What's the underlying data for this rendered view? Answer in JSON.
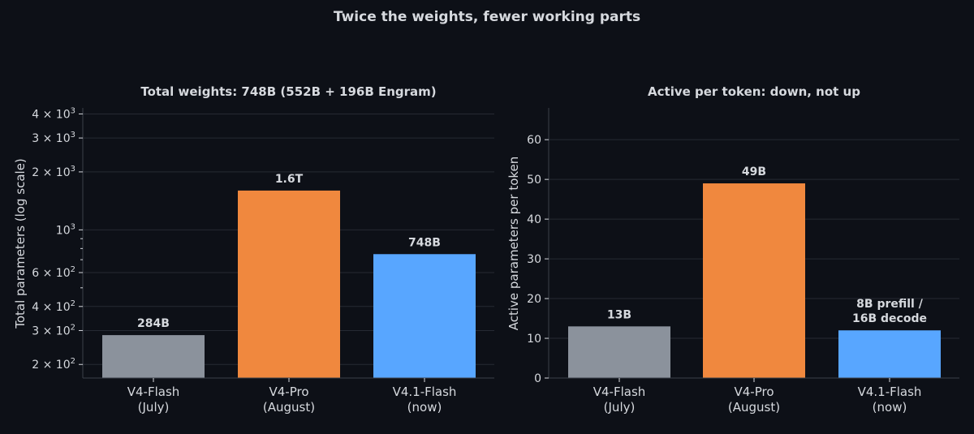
{
  "suptitle": "Twice the weights, fewer working parts",
  "colors": {
    "background": "#0d1017",
    "text": "#d6d9de",
    "axis": "#3a3f48",
    "grid": "#262a33",
    "bar_july": "#8b929c",
    "bar_august": "#f0883e",
    "bar_now": "#58a6ff"
  },
  "chart_data": [
    {
      "type": "bar",
      "title": "Total weights: 748B (552B + 196B Engram)",
      "ylabel": "Total parameters (log scale)",
      "yscale": "log",
      "ylim": [
        170,
        4300
      ],
      "yticks": [
        {
          "value": 200,
          "label": "2 × 10²"
        },
        {
          "value": 300,
          "label": "3 × 10²"
        },
        {
          "value": 400,
          "label": "4 × 10²"
        },
        {
          "value": 600,
          "label": "6 × 10²"
        },
        {
          "value": 1000,
          "label": "10³"
        },
        {
          "value": 2000,
          "label": "2 × 10³"
        },
        {
          "value": 3000,
          "label": "3 × 10³"
        },
        {
          "value": 4000,
          "label": "4 × 10³"
        }
      ],
      "minor_ticks": [
        500,
        700,
        800,
        900
      ],
      "grid": true,
      "categories": [
        [
          "V4-Flash",
          "(July)"
        ],
        [
          "V4-Pro",
          "(August)"
        ],
        [
          "V4.1-Flash",
          "(now)"
        ]
      ],
      "values": [
        284,
        1600,
        748
      ],
      "data_labels": [
        [
          "284B"
        ],
        [
          "1.6T"
        ],
        [
          "748B"
        ]
      ],
      "bar_colors": [
        "#8b929c",
        "#f0883e",
        "#58a6ff"
      ]
    },
    {
      "type": "bar",
      "title": "Active per token: down, not up",
      "ylabel": "Active parameters per token",
      "yscale": "linear",
      "ylim": [
        0,
        68
      ],
      "yticks": [
        {
          "value": 0,
          "label": "0"
        },
        {
          "value": 10,
          "label": "10"
        },
        {
          "value": 20,
          "label": "20"
        },
        {
          "value": 30,
          "label": "30"
        },
        {
          "value": 40,
          "label": "40"
        },
        {
          "value": 50,
          "label": "50"
        },
        {
          "value": 60,
          "label": "60"
        }
      ],
      "grid": true,
      "categories": [
        [
          "V4-Flash",
          "(July)"
        ],
        [
          "V4-Pro",
          "(August)"
        ],
        [
          "V4.1-Flash",
          "(now)"
        ]
      ],
      "values": [
        13,
        49,
        12
      ],
      "data_labels": [
        [
          "13B"
        ],
        [
          "49B"
        ],
        [
          "8B prefill /",
          "16B decode"
        ]
      ],
      "bar_colors": [
        "#8b929c",
        "#f0883e",
        "#58a6ff"
      ]
    }
  ]
}
